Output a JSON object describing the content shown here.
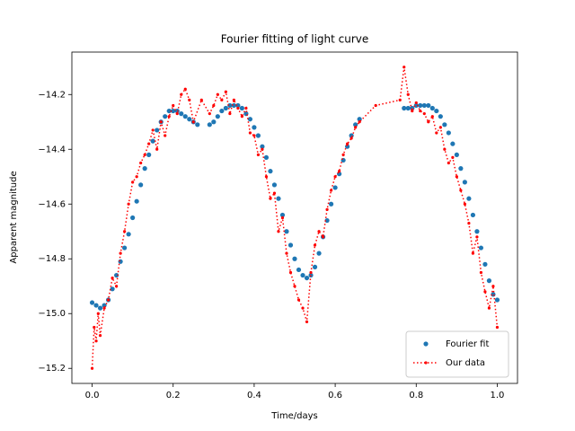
{
  "chart_data": {
    "type": "scatter",
    "title": "Fourier fitting of light curve",
    "x_label": "Time/days",
    "y_label": "Apparent magnitude",
    "xlim": [
      -0.05,
      1.05
    ],
    "ylim": [
      -15.255,
      -14.045
    ],
    "xticks": [
      {
        "value": 0,
        "label": "0.0"
      },
      {
        "value": 0.2,
        "label": "0.2"
      },
      {
        "value": 0.4,
        "label": "0.4"
      },
      {
        "value": 0.6,
        "label": "0.6"
      },
      {
        "value": 0.8,
        "label": "0.8"
      },
      {
        "value": 1,
        "label": "1.0"
      }
    ],
    "yticks": [
      {
        "value": -15.2,
        "label": "−15.2"
      },
      {
        "value": -15.0,
        "label": "−15.0"
      },
      {
        "value": -14.8,
        "label": "−14.8"
      },
      {
        "value": -14.6,
        "label": "−14.6"
      },
      {
        "value": -14.4,
        "label": "−14.4"
      },
      {
        "value": -14.2,
        "label": "−14.2"
      }
    ],
    "legend": "lower right",
    "series": [
      {
        "name": "Fourier fit",
        "color": "#1f77b4",
        "style": "dots",
        "x": [
          0,
          0.01,
          0.02,
          0.03,
          0.04,
          0.05,
          0.06,
          0.07,
          0.08,
          0.09,
          0.1,
          0.11,
          0.12,
          0.13,
          0.14,
          0.15,
          0.16,
          0.17,
          0.18,
          0.19,
          0.2,
          0.21,
          0.22,
          0.23,
          0.24,
          0.25,
          0.26,
          0.29,
          0.3,
          0.31,
          0.32,
          0.33,
          0.34,
          0.35,
          0.36,
          0.37,
          0.38,
          0.39,
          0.4,
          0.41,
          0.42,
          0.43,
          0.44,
          0.45,
          0.46,
          0.47,
          0.48,
          0.49,
          0.5,
          0.51,
          0.52,
          0.53,
          0.54,
          0.55,
          0.56,
          0.57,
          0.58,
          0.59,
          0.6,
          0.61,
          0.62,
          0.63,
          0.64,
          0.65,
          0.66,
          0.77,
          0.78,
          0.79,
          0.8,
          0.81,
          0.82,
          0.83,
          0.84,
          0.85,
          0.86,
          0.87,
          0.88,
          0.89,
          0.9,
          0.91,
          0.92,
          0.93,
          0.94,
          0.95,
          0.96,
          0.97,
          0.98,
          0.99,
          1
        ],
        "values": [
          -14.96,
          -14.97,
          -14.98,
          -14.97,
          -14.95,
          -14.91,
          -14.86,
          -14.81,
          -14.76,
          -14.71,
          -14.65,
          -14.59,
          -14.53,
          -14.47,
          -14.42,
          -14.37,
          -14.33,
          -14.3,
          -14.28,
          -14.26,
          -14.26,
          -14.26,
          -14.27,
          -14.28,
          -14.29,
          -14.3,
          -14.31,
          -14.31,
          -14.3,
          -14.28,
          -14.26,
          -14.25,
          -14.24,
          -14.24,
          -14.24,
          -14.25,
          -14.27,
          -14.29,
          -14.32,
          -14.35,
          -14.39,
          -14.43,
          -14.48,
          -14.53,
          -14.58,
          -14.64,
          -14.7,
          -14.75,
          -14.8,
          -14.84,
          -14.86,
          -14.87,
          -14.86,
          -14.83,
          -14.78,
          -14.72,
          -14.66,
          -14.6,
          -14.54,
          -14.49,
          -14.44,
          -14.39,
          -14.35,
          -14.31,
          -14.29,
          -14.25,
          -14.25,
          -14.25,
          -14.24,
          -14.24,
          -14.24,
          -14.24,
          -14.25,
          -14.26,
          -14.28,
          -14.31,
          -14.34,
          -14.38,
          -14.42,
          -14.47,
          -14.52,
          -14.58,
          -14.64,
          -14.7,
          -14.76,
          -14.82,
          -14.88,
          -14.93,
          -14.95
        ]
      },
      {
        "name": "Our data",
        "color": "#ff0000",
        "style": "dotted-line",
        "x": [
          0,
          0.005,
          0.01,
          0.015,
          0.02,
          0.03,
          0.04,
          0.05,
          0.06,
          0.07,
          0.08,
          0.09,
          0.1,
          0.11,
          0.12,
          0.13,
          0.14,
          0.15,
          0.16,
          0.17,
          0.18,
          0.19,
          0.2,
          0.21,
          0.22,
          0.23,
          0.24,
          0.25,
          0.27,
          0.29,
          0.3,
          0.31,
          0.32,
          0.33,
          0.34,
          0.35,
          0.36,
          0.37,
          0.38,
          0.39,
          0.4,
          0.41,
          0.42,
          0.43,
          0.44,
          0.45,
          0.46,
          0.47,
          0.48,
          0.49,
          0.5,
          0.51,
          0.52,
          0.53,
          0.54,
          0.55,
          0.56,
          0.57,
          0.58,
          0.59,
          0.6,
          0.61,
          0.62,
          0.63,
          0.64,
          0.65,
          0.66,
          0.7,
          0.76,
          0.77,
          0.78,
          0.79,
          0.8,
          0.81,
          0.82,
          0.83,
          0.84,
          0.85,
          0.86,
          0.87,
          0.88,
          0.89,
          0.9,
          0.91,
          0.92,
          0.93,
          0.94,
          0.95,
          0.96,
          0.97,
          0.98,
          0.99,
          1
        ],
        "values": [
          -15.2,
          -15.05,
          -15.1,
          -15,
          -15.08,
          -14.98,
          -14.95,
          -14.87,
          -14.9,
          -14.78,
          -14.7,
          -14.6,
          -14.52,
          -14.5,
          -14.45,
          -14.42,
          -14.38,
          -14.33,
          -14.4,
          -14.3,
          -14.35,
          -14.28,
          -14.24,
          -14.27,
          -14.2,
          -14.18,
          -14.22,
          -14.3,
          -14.22,
          -14.27,
          -14.24,
          -14.2,
          -14.22,
          -14.19,
          -14.27,
          -14.22,
          -14.25,
          -14.28,
          -14.25,
          -14.34,
          -14.35,
          -14.42,
          -14.4,
          -14.5,
          -14.58,
          -14.56,
          -14.7,
          -14.65,
          -14.78,
          -14.85,
          -14.9,
          -14.95,
          -14.98,
          -15.03,
          -14.85,
          -14.75,
          -14.7,
          -14.72,
          -14.62,
          -14.55,
          -14.5,
          -14.48,
          -14.42,
          -14.38,
          -14.36,
          -14.32,
          -14.3,
          -14.24,
          -14.22,
          -14.1,
          -14.2,
          -14.26,
          -14.23,
          -14.26,
          -14.27,
          -14.3,
          -14.28,
          -14.34,
          -14.32,
          -14.4,
          -14.45,
          -14.43,
          -14.5,
          -14.55,
          -14.6,
          -14.67,
          -14.78,
          -14.72,
          -14.85,
          -14.92,
          -14.98,
          -14.9,
          -15.05
        ]
      }
    ]
  }
}
